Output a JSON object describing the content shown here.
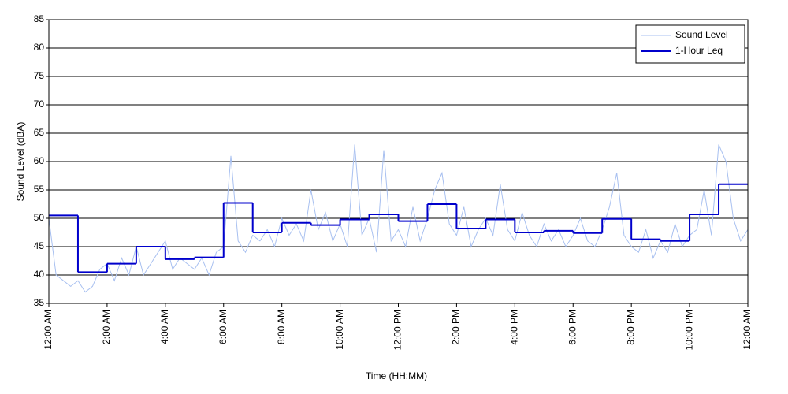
{
  "chart_data": {
    "type": "line",
    "xlabel": "Time (HH:MM)",
    "ylabel": "Sound Level (dBA)",
    "xlim": [
      0,
      24
    ],
    "ylim": [
      35,
      85
    ],
    "xticks": [
      {
        "value": 0,
        "label": "12:00 AM"
      },
      {
        "value": 2,
        "label": "2:00 AM"
      },
      {
        "value": 4,
        "label": "4:00 AM"
      },
      {
        "value": 6,
        "label": "6:00 AM"
      },
      {
        "value": 8,
        "label": "8:00 AM"
      },
      {
        "value": 10,
        "label": "10:00 AM"
      },
      {
        "value": 12,
        "label": "12:00 PM"
      },
      {
        "value": 14,
        "label": "2:00 PM"
      },
      {
        "value": 16,
        "label": "4:00 PM"
      },
      {
        "value": 18,
        "label": "6:00 PM"
      },
      {
        "value": 20,
        "label": "8:00 PM"
      },
      {
        "value": 22,
        "label": "10:00 PM"
      },
      {
        "value": 24,
        "label": "12:00 AM"
      }
    ],
    "yticks": [
      35,
      40,
      45,
      50,
      55,
      60,
      65,
      70,
      75,
      80,
      85
    ],
    "grid": true,
    "legend": "upper right",
    "series": [
      {
        "name": "Sound Level",
        "color": "#a8c0f0",
        "step": false,
        "x": [
          0,
          0.25,
          0.5,
          0.75,
          1,
          1.25,
          1.5,
          1.75,
          2,
          2.25,
          2.5,
          2.75,
          3,
          3.25,
          3.5,
          3.75,
          4,
          4.25,
          4.5,
          4.75,
          5,
          5.25,
          5.5,
          5.75,
          6,
          6.25,
          6.5,
          6.75,
          7,
          7.25,
          7.5,
          7.75,
          8,
          8.25,
          8.5,
          8.75,
          9,
          9.25,
          9.5,
          9.75,
          10,
          10.25,
          10.5,
          10.75,
          11,
          11.25,
          11.5,
          11.75,
          12,
          12.25,
          12.5,
          12.75,
          13,
          13.25,
          13.5,
          13.75,
          14,
          14.25,
          14.5,
          14.75,
          15,
          15.25,
          15.5,
          15.75,
          16,
          16.25,
          16.5,
          16.75,
          17,
          17.25,
          17.5,
          17.75,
          18,
          18.25,
          18.5,
          18.75,
          19,
          19.25,
          19.5,
          19.75,
          20,
          20.25,
          20.5,
          20.75,
          21,
          21.25,
          21.5,
          21.75,
          22,
          22.25,
          22.5,
          22.75,
          23,
          23.25,
          23.5,
          23.75,
          24
        ],
        "values": [
          50,
          40,
          39,
          38,
          39,
          37,
          38,
          41,
          42,
          39,
          43,
          40,
          45,
          40,
          42,
          44,
          46,
          41,
          43,
          42,
          41,
          43,
          40,
          44,
          45,
          61,
          46,
          44,
          47,
          46,
          48,
          45,
          50,
          47,
          49,
          46,
          55,
          48,
          51,
          46,
          49,
          45,
          63,
          47,
          50,
          44,
          62,
          46,
          48,
          45,
          52,
          46,
          50,
          55,
          58,
          49,
          47,
          52,
          45,
          48,
          50,
          47,
          56,
          48,
          46,
          51,
          47,
          45,
          49,
          46,
          48,
          45,
          47,
          50,
          46,
          45,
          48,
          52,
          58,
          47,
          45,
          44,
          48,
          43,
          46,
          44,
          49,
          45,
          47,
          48,
          55,
          47,
          63,
          60,
          50,
          46,
          48
        ]
      },
      {
        "name": "1-Hour Leq",
        "color": "#0000cc",
        "step": true,
        "x": [
          0,
          1,
          2,
          3,
          4,
          5,
          6,
          7,
          8,
          9,
          10,
          11,
          12,
          13,
          14,
          15,
          16,
          17,
          18,
          19,
          20,
          21,
          22,
          23
        ],
        "values": [
          50.5,
          40.5,
          42.0,
          45.0,
          42.8,
          43.1,
          52.7,
          47.5,
          49.2,
          48.8,
          49.8,
          50.7,
          49.5,
          52.5,
          48.2,
          49.8,
          47.5,
          47.8,
          47.4,
          49.9,
          46.3,
          46.0,
          50.7,
          56.0
        ]
      }
    ]
  }
}
